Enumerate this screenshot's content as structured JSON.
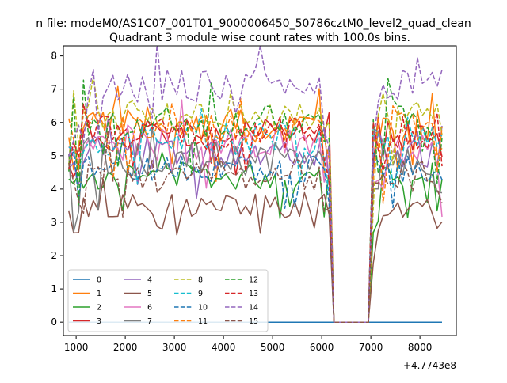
{
  "figure": {
    "suptitle": "n file: modeM0/AS1C07_001T01_9000006450_50786cztM0_level2_quad_clean"
  },
  "chart_data": {
    "type": "line",
    "title": "Quadrant 3 module wise count rates with 100.0s bins.",
    "xlabel": "",
    "ylabel": "",
    "x_offset_label": "+4.7743e8",
    "xlim": [
      740,
      8740
    ],
    "ylim": [
      -0.4,
      8.3
    ],
    "xticks": [
      "1000",
      "2000",
      "3000",
      "4000",
      "5000",
      "6000",
      "7000",
      "8000"
    ],
    "xtick_values": [
      1000,
      2000,
      3000,
      4000,
      5000,
      6000,
      7000,
      8000
    ],
    "yticks": [
      "0",
      "1",
      "2",
      "3",
      "4",
      "5",
      "6",
      "7",
      "8"
    ],
    "ytick_values": [
      0,
      1,
      2,
      3,
      4,
      5,
      6,
      7,
      8
    ],
    "grid": false,
    "legend": {
      "position": "lower-left",
      "columns": 4
    },
    "gap": {
      "start": 6250,
      "end": 6950
    },
    "segments": [
      {
        "start": 850,
        "end": 6150
      },
      {
        "start": 7050,
        "end": 8450
      }
    ],
    "series": [
      {
        "name": "0",
        "color": "#1f77b4",
        "style": "solid",
        "base": 0.0,
        "amp": 0.0,
        "seed": 1
      },
      {
        "name": "1",
        "color": "#ff7f0e",
        "style": "solid",
        "base": 5.9,
        "amp": 0.5,
        "seed": 2
      },
      {
        "name": "2",
        "color": "#2ca02c",
        "style": "solid",
        "base": 4.4,
        "amp": 0.4,
        "seed": 3
      },
      {
        "name": "3",
        "color": "#d62728",
        "style": "solid",
        "base": 5.6,
        "amp": 0.5,
        "seed": 4
      },
      {
        "name": "4",
        "color": "#9467bd",
        "style": "solid",
        "base": 5.1,
        "amp": 0.5,
        "seed": 5
      },
      {
        "name": "5",
        "color": "#8c564b",
        "style": "solid",
        "base": 3.5,
        "amp": 0.4,
        "seed": 6
      },
      {
        "name": "6",
        "color": "#e377c2",
        "style": "solid",
        "base": 5.3,
        "amp": 0.5,
        "seed": 7
      },
      {
        "name": "7",
        "color": "#7f7f7f",
        "style": "solid",
        "base": 4.9,
        "amp": 0.5,
        "seed": 8
      },
      {
        "name": "8",
        "color": "#bcbd22",
        "style": "dashed",
        "base": 6.2,
        "amp": 0.5,
        "seed": 9
      },
      {
        "name": "9",
        "color": "#17becf",
        "style": "dashed",
        "base": 5.5,
        "amp": 0.5,
        "seed": 10
      },
      {
        "name": "10",
        "color": "#1f77b4",
        "style": "dashed",
        "base": 4.6,
        "amp": 0.4,
        "seed": 11
      },
      {
        "name": "11",
        "color": "#ff7f0e",
        "style": "dashed",
        "base": 5.8,
        "amp": 0.5,
        "seed": 12
      },
      {
        "name": "12",
        "color": "#2ca02c",
        "style": "dashed",
        "base": 6.0,
        "amp": 0.5,
        "seed": 13
      },
      {
        "name": "13",
        "color": "#d62728",
        "style": "dashed",
        "base": 5.7,
        "amp": 0.5,
        "seed": 14
      },
      {
        "name": "14",
        "color": "#9467bd",
        "style": "dashed",
        "base": 7.1,
        "amp": 0.5,
        "seed": 15
      },
      {
        "name": "15",
        "color": "#8c564b",
        "style": "dashed",
        "base": 4.4,
        "amp": 0.5,
        "seed": 16
      }
    ]
  }
}
